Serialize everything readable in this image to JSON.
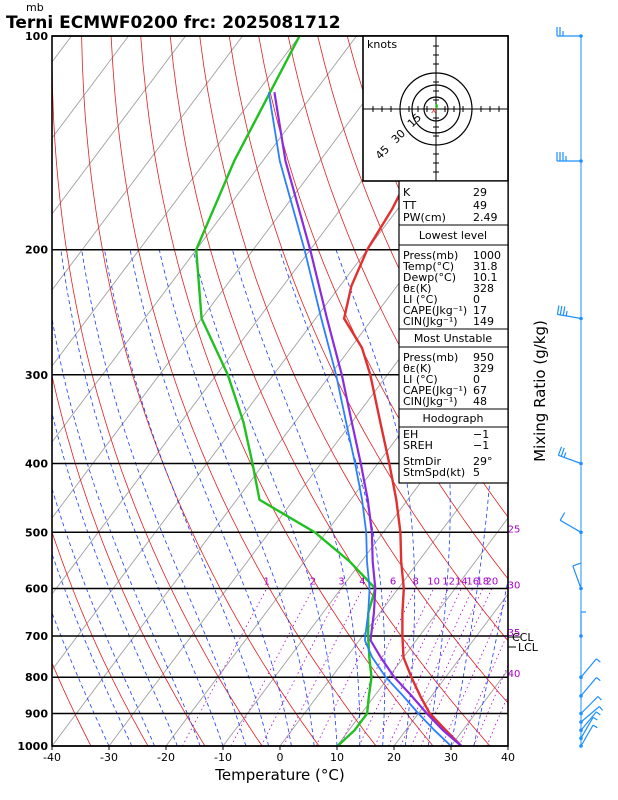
{
  "header": {
    "title": "Terni ECMWF0200  frc: 2025081712",
    "pressure_unit": "mb"
  },
  "colors": {
    "temperature": "#e03030",
    "dewpoint": "#20c020",
    "parcel": "#8a2be2",
    "virtual_parcel": "#2a7fff",
    "dry_adiabat": "#e02020",
    "moist_adiabat": "#1a3cff",
    "mixing_ratio": "#aa00cc",
    "isotherm": "#a0a0a0",
    "wind": "#1e90ff"
  },
  "chart_data": {
    "type": "line",
    "xlabel": "Temperature (°C)",
    "ylabel": "Mixing Ratio (g/kg)",
    "xlim": [
      -40,
      40
    ],
    "ylim_pressure": [
      1000,
      100
    ],
    "x_ticks": [
      "-40",
      "-30",
      "-20",
      "-10",
      "0",
      "10",
      "20",
      "30",
      "40"
    ],
    "y_ticks": [
      "100",
      "200",
      "300",
      "400",
      "500",
      "600",
      "700",
      "800",
      "900",
      "1000"
    ],
    "y_tick_values": [
      100,
      200,
      300,
      400,
      500,
      600,
      700,
      800,
      900,
      1000
    ],
    "scale": "log-pressure",
    "series": [
      {
        "key": "temperature",
        "points": [
          [
            1000,
            31.8
          ],
          [
            950,
            27
          ],
          [
            900,
            22
          ],
          [
            850,
            18
          ],
          [
            800,
            14
          ],
          [
            750,
            10
          ],
          [
            700,
            7
          ],
          [
            650,
            4
          ],
          [
            600,
            1
          ],
          [
            550,
            -3
          ],
          [
            500,
            -7
          ],
          [
            450,
            -12
          ],
          [
            400,
            -18
          ],
          [
            350,
            -25
          ],
          [
            300,
            -33
          ],
          [
            275,
            -38
          ],
          [
            250,
            -45
          ],
          [
            225,
            -48
          ],
          [
            200,
            -50
          ],
          [
            175,
            -51
          ],
          [
            150,
            -53
          ],
          [
            125,
            -55
          ],
          [
            100,
            -57
          ]
        ]
      },
      {
        "key": "dewpoint",
        "points": [
          [
            1000,
            10.1
          ],
          [
            950,
            11
          ],
          [
            900,
            11
          ],
          [
            850,
            9
          ],
          [
            800,
            7
          ],
          [
            750,
            4
          ],
          [
            700,
            1
          ],
          [
            650,
            -2
          ],
          [
            600,
            -4
          ],
          [
            550,
            -12
          ],
          [
            500,
            -22
          ],
          [
            450,
            -36
          ],
          [
            400,
            -42
          ],
          [
            350,
            -49
          ],
          [
            300,
            -58
          ],
          [
            250,
            -70
          ],
          [
            200,
            -80
          ],
          [
            150,
            -85
          ],
          [
            100,
            -90
          ]
        ]
      },
      {
        "key": "parcel",
        "points": [
          [
            1000,
            31.8
          ],
          [
            950,
            26.5
          ],
          [
            900,
            21.5
          ],
          [
            850,
            16.5
          ],
          [
            800,
            11
          ],
          [
            750,
            6
          ],
          [
            710,
            2
          ],
          [
            700,
            1.5
          ],
          [
            650,
            -1
          ],
          [
            600,
            -4
          ],
          [
            550,
            -8
          ],
          [
            500,
            -12
          ],
          [
            450,
            -17
          ],
          [
            400,
            -23
          ],
          [
            350,
            -30
          ],
          [
            300,
            -38
          ],
          [
            250,
            -48
          ],
          [
            200,
            -60
          ],
          [
            150,
            -76
          ],
          [
            120,
            -87
          ]
        ]
      },
      {
        "key": "virtual_parcel",
        "points": [
          [
            1000,
            30
          ],
          [
            950,
            25
          ],
          [
            900,
            20
          ],
          [
            850,
            15
          ],
          [
            800,
            9.5
          ],
          [
            750,
            4.5
          ],
          [
            710,
            1
          ],
          [
            700,
            0.5
          ],
          [
            650,
            -2
          ],
          [
            600,
            -5
          ],
          [
            550,
            -9
          ],
          [
            500,
            -13
          ],
          [
            450,
            -18
          ],
          [
            400,
            -24
          ],
          [
            350,
            -31
          ],
          [
            300,
            -39
          ],
          [
            250,
            -49
          ],
          [
            200,
            -61
          ],
          [
            150,
            -77
          ],
          [
            120,
            -88
          ]
        ]
      }
    ],
    "mixing_ratio_labels": [
      "1",
      "2",
      "3",
      "4",
      "6",
      "8",
      "10",
      "12",
      "14",
      "16",
      "18",
      "20",
      "25",
      "30",
      "35",
      "40"
    ],
    "levels": {
      "lcl": "LCL",
      "ccl": "CCL"
    },
    "wind_profile": [
      {
        "p": 100,
        "dir": 270,
        "spd": 25
      },
      {
        "p": 150,
        "dir": 270,
        "spd": 35
      },
      {
        "p": 250,
        "dir": 280,
        "spd": 35
      },
      {
        "p": 400,
        "dir": 290,
        "spd": 25
      },
      {
        "p": 500,
        "dir": 300,
        "spd": 10
      },
      {
        "p": 600,
        "dir": 340,
        "spd": 10
      },
      {
        "p": 700,
        "dir": 0,
        "spd": 5
      },
      {
        "p": 800,
        "dir": 40,
        "spd": 5
      },
      {
        "p": 850,
        "dir": 40,
        "spd": 5
      },
      {
        "p": 900,
        "dir": 45,
        "spd": 5
      },
      {
        "p": 925,
        "dir": 50,
        "spd": 5
      },
      {
        "p": 950,
        "dir": 40,
        "spd": 5
      },
      {
        "p": 975,
        "dir": 30,
        "spd": 5
      },
      {
        "p": 1000,
        "dir": 30,
        "spd": 5
      }
    ]
  },
  "hodograph": {
    "units": "knots",
    "ring_labels": [
      "15",
      "30",
      "45"
    ]
  },
  "indices_table": {
    "top": [
      {
        "label": "K",
        "value": "29"
      },
      {
        "label": "TT",
        "value": "49"
      },
      {
        "label": "PW(cm)",
        "value": "2.49"
      }
    ],
    "lowest_level": {
      "title": "Lowest level",
      "rows": [
        {
          "label": "Press(mb)",
          "value": "1000"
        },
        {
          "label": "Temp(°C)",
          "value": "31.8"
        },
        {
          "label": "Dewp(°C)",
          "value": "10.1"
        },
        {
          "label": "θε(K)",
          "value": "328"
        },
        {
          "label": "LI (°C)",
          "value": "0"
        },
        {
          "label": "CAPE(Jkg⁻¹)",
          "value": "17"
        },
        {
          "label": "CIN(Jkg⁻¹)",
          "value": "149"
        }
      ]
    },
    "most_unstable": {
      "title": "Most Unstable",
      "rows": [
        {
          "label": "Press(mb)",
          "value": "950"
        },
        {
          "label": "θε(K)",
          "value": "329"
        },
        {
          "label": "LI (°C)",
          "value": "0"
        },
        {
          "label": "CAPE(Jkg⁻¹)",
          "value": "67"
        },
        {
          "label": "CIN(Jkg⁻¹)",
          "value": "48"
        }
      ]
    },
    "hodograph_params": {
      "title": "Hodograph",
      "rows": [
        {
          "label": "EH",
          "value": "−1"
        },
        {
          "label": "SREH",
          "value": "−1"
        }
      ],
      "rows2": [
        {
          "label": "StmDir",
          "value": "29°"
        },
        {
          "label": "StmSpd(kt)",
          "value": "5"
        }
      ]
    }
  }
}
